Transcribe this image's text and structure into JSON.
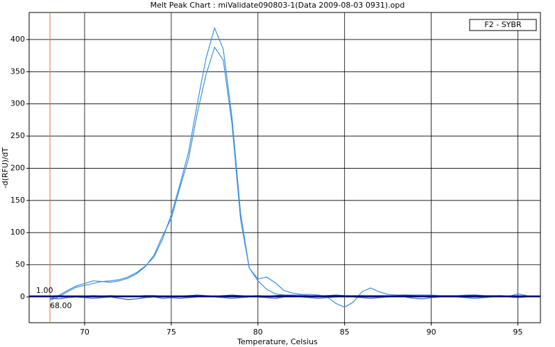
{
  "chart_data": {
    "type": "line",
    "title": "Melt Peak Chart : miValidate090803-1(Data 2009-08-03 0931).opd",
    "x_label": "Temperature, Celsius",
    "y_label": "-d(RFU)/dT",
    "legend_label": "F2 - SYBR",
    "x": [
      68,
      68.5,
      69,
      69.5,
      70,
      70.5,
      71,
      71.5,
      72,
      72.5,
      73,
      73.5,
      74,
      74.5,
      75,
      75.5,
      76,
      76.5,
      77,
      77.5,
      78,
      78.5,
      79,
      79.5,
      80,
      80.5,
      81,
      81.5,
      82,
      82.5,
      83,
      83.5,
      84,
      84.5,
      85,
      85.5,
      86,
      86.5,
      87,
      87.5,
      88,
      88.5,
      89,
      89.5,
      90,
      90.5,
      91,
      91.5,
      92,
      92.5,
      93,
      93.5,
      94,
      94.5,
      95,
      95.5
    ],
    "series": [
      {
        "color": "#3b8fe0",
        "values": [
          -5,
          0,
          8,
          15,
          18,
          21,
          24,
          25,
          27,
          31,
          38,
          48,
          62,
          90,
          128,
          175,
          225,
          300,
          370,
          418,
          385,
          280,
          130,
          45,
          25,
          12,
          5,
          3,
          3,
          3,
          2,
          2,
          2,
          2,
          2,
          2,
          2,
          2,
          2,
          2,
          2,
          2,
          2,
          2,
          1,
          1,
          1,
          1,
          0,
          0,
          0,
          0,
          1,
          1,
          0,
          0
        ]
      },
      {
        "color": "#3b8fe0",
        "values": [
          -3,
          2,
          10,
          17,
          21,
          25,
          24,
          23,
          25,
          29,
          36,
          47,
          65,
          95,
          122,
          170,
          215,
          285,
          345,
          388,
          368,
          270,
          120,
          45,
          28,
          31,
          22,
          10,
          6,
          4,
          4,
          3,
          0,
          -10,
          -16,
          -8,
          8,
          14,
          8,
          4,
          3,
          3,
          3,
          3,
          3,
          2,
          2,
          2,
          3,
          3,
          2,
          2,
          2,
          1,
          5,
          2
        ]
      },
      {
        "color": "#1f55b0",
        "values": [
          -2,
          -3,
          -1,
          0,
          -1,
          -2,
          -1,
          0,
          -2,
          -4,
          -3,
          -1,
          0,
          -2,
          -1,
          -2,
          -1,
          0,
          1,
          0,
          -1,
          -2,
          -1,
          0,
          0,
          -1,
          -2,
          0,
          1,
          0,
          -1,
          -2,
          -1,
          0,
          1,
          0,
          -1,
          -2,
          -1,
          0,
          1,
          0,
          -2,
          -3,
          -1,
          0,
          1,
          0,
          -1,
          -2,
          -1,
          0,
          1,
          0,
          -1,
          0
        ]
      },
      {
        "color": "#1f55b0",
        "values": [
          1,
          2,
          1,
          0,
          1,
          2,
          1,
          2,
          1,
          0,
          1,
          2,
          2,
          1,
          0,
          1,
          2,
          3,
          2,
          1,
          2,
          3,
          2,
          1,
          2,
          1,
          2,
          3,
          2,
          1,
          0,
          1,
          2,
          3,
          2,
          1,
          2,
          1,
          0,
          1,
          2,
          3,
          2,
          1,
          2,
          1,
          0,
          1,
          2,
          3,
          2,
          1,
          2,
          1,
          2,
          1
        ]
      }
    ],
    "threshold": {
      "value": 1,
      "label": "1.00",
      "color": "#000080"
    },
    "marker_x": {
      "value": 68,
      "label": "68.00",
      "color": "#e07040"
    },
    "xlim": [
      66.8,
      96.3
    ],
    "ylim": [
      -40,
      442
    ],
    "xticks": [
      70,
      75,
      80,
      85,
      90,
      95
    ],
    "yticks": [
      0,
      50,
      100,
      150,
      200,
      250,
      300,
      350,
      400
    ],
    "grid": true
  }
}
